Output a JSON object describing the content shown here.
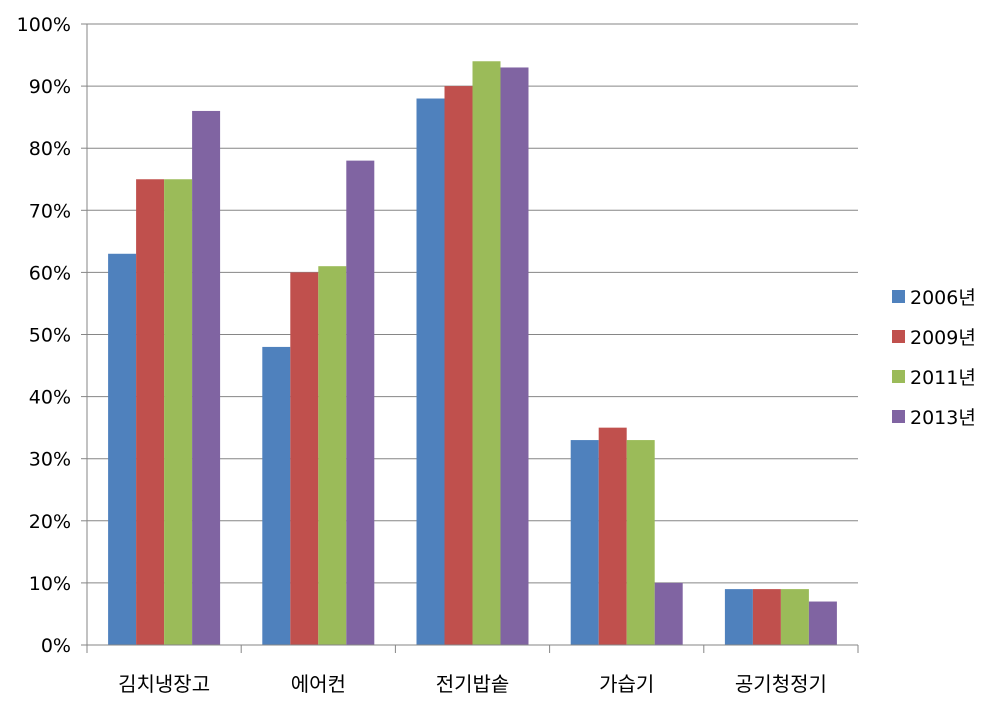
{
  "chart_data": {
    "type": "bar",
    "title": "",
    "xlabel": "",
    "ylabel": "",
    "categories": [
      "김치냉장고",
      "에어컨",
      "전기밥솥",
      "가습기",
      "공기청정기"
    ],
    "series": [
      {
        "name": "2006년",
        "color": "#4F81BD",
        "values": [
          63,
          48,
          88,
          33,
          9
        ]
      },
      {
        "name": "2009년",
        "color": "#C0504D",
        "values": [
          75,
          60,
          90,
          35,
          9
        ]
      },
      {
        "name": "2011년",
        "color": "#9BBB59",
        "values": [
          75,
          61,
          94,
          33,
          9
        ]
      },
      {
        "name": "2013년",
        "color": "#8064A2",
        "values": [
          86,
          78,
          93,
          10,
          7
        ]
      }
    ],
    "ylim": [
      0,
      100
    ],
    "yticks": [
      0,
      10,
      20,
      30,
      40,
      50,
      60,
      70,
      80,
      90,
      100
    ],
    "ytick_labels": [
      "0%",
      "10%",
      "20%",
      "30%",
      "40%",
      "50%",
      "60%",
      "70%",
      "80%",
      "90%",
      "100%"
    ],
    "grid": true,
    "legend_position": "right"
  }
}
